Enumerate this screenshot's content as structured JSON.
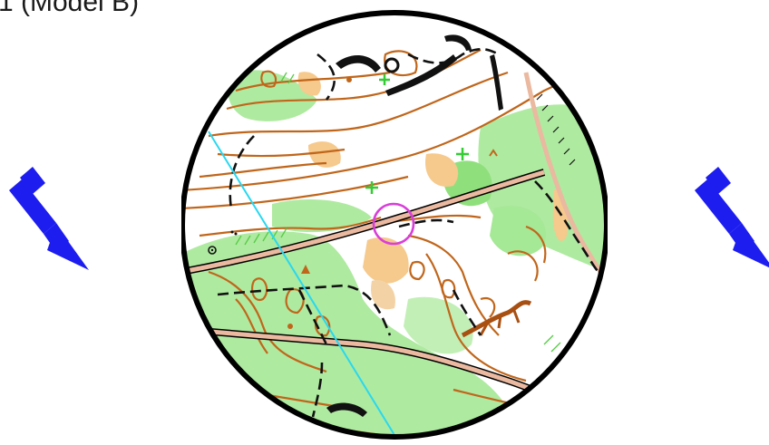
{
  "title": "1 (Model B)",
  "north_arrow_icon": "north-arrow-icon",
  "colors": {
    "contour": "#c0661b",
    "vegetation": "#9ee58e",
    "open_land": "#f6c98c",
    "track": "#eab9a0",
    "course": "#d93fd9",
    "magnetic_line": "#28d8f0",
    "arrow": "#1d1df0"
  }
}
